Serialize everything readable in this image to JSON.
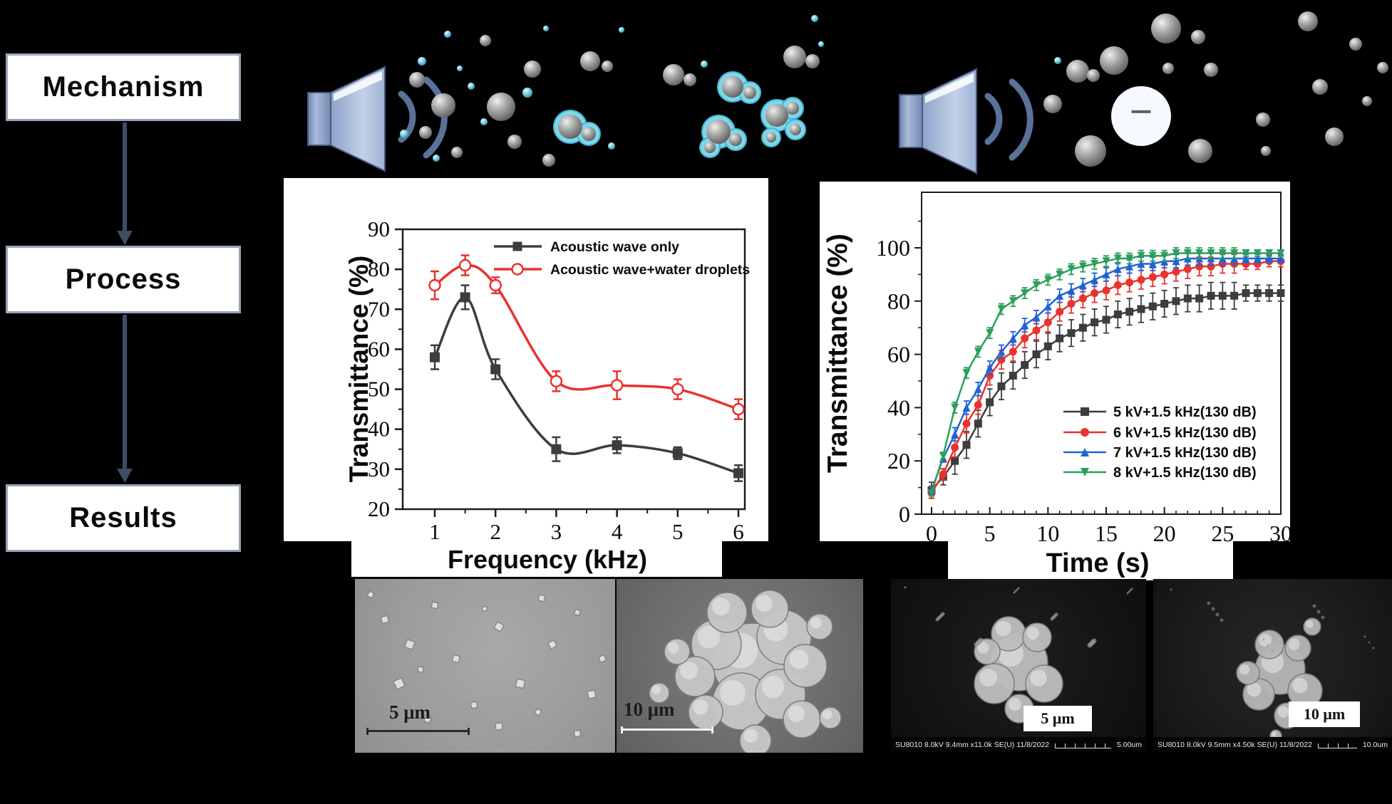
{
  "flowchart": {
    "items": [
      "Mechanism",
      "Process",
      "Results"
    ]
  },
  "mechanism": {
    "minus_symbol": "−",
    "accent_cyan": "#7fd7ea",
    "speaker_color": "#9db2d6"
  },
  "chart_data": [
    {
      "type": "line",
      "title": "",
      "xlabel": "Frequency (kHz)",
      "ylabel": "Transmittance (%)",
      "xlim": [
        0.47,
        6.1
      ],
      "ylim": [
        20,
        90
      ],
      "xticks": [
        1,
        2,
        3,
        4,
        5,
        6
      ],
      "yticks": [
        20,
        30,
        40,
        50,
        60,
        70,
        80,
        90
      ],
      "grid": false,
      "legend_position": "top-inside",
      "x": [
        1,
        1.5,
        2,
        3,
        4,
        5,
        6
      ],
      "series": [
        {
          "name": "Acoustic wave only",
          "color": "#3d3d3d",
          "marker": "square",
          "values": [
            58,
            73,
            55,
            35,
            36,
            34,
            29
          ],
          "errors": [
            3,
            3,
            2.5,
            3,
            2,
            1.5,
            2
          ]
        },
        {
          "name": "Acoustic wave+water droplets",
          "color": "#e8332e",
          "marker": "open-circle",
          "values": [
            76,
            81,
            76,
            52,
            51,
            50,
            45
          ],
          "errors": [
            3.5,
            2.5,
            2,
            2.5,
            3.5,
            2.5,
            2.5
          ]
        }
      ]
    },
    {
      "type": "line",
      "title": "",
      "xlabel": "Time (s)",
      "ylabel": "Transmittance (%)",
      "xlim": [
        -0.9,
        30
      ],
      "ylim": [
        0,
        120
      ],
      "xticks": [
        0,
        5,
        10,
        15,
        20,
        25,
        30
      ],
      "yticks": [
        0,
        20,
        40,
        60,
        80,
        100
      ],
      "grid": false,
      "legend_position": "right-inside",
      "x": [
        0,
        1,
        2,
        3,
        4,
        5,
        6,
        7,
        8,
        9,
        10,
        11,
        12,
        13,
        14,
        15,
        16,
        17,
        18,
        19,
        20,
        21,
        22,
        23,
        24,
        25,
        26,
        27,
        28,
        29,
        30
      ],
      "series": [
        {
          "name": "5 kV+1.5 kHz(130 dB)",
          "color": "#3d3d3d",
          "marker": "square",
          "error": 5,
          "values": [
            9,
            14,
            20,
            26,
            34,
            42,
            48,
            52,
            56,
            60,
            63,
            66,
            68,
            70,
            72,
            73,
            75,
            76,
            77,
            78,
            79,
            80,
            81,
            81,
            82,
            82,
            82,
            83,
            83,
            83,
            83
          ]
        },
        {
          "name": "6 kV+1.5 kHz(130 dB)",
          "color": "#e8332e",
          "marker": "circle",
          "error": 3.5,
          "values": [
            8,
            15,
            25,
            34,
            41,
            52,
            58,
            61,
            66,
            69,
            72,
            76,
            79,
            81,
            83,
            84,
            86,
            87,
            88,
            89,
            90,
            91,
            92,
            93,
            93,
            94,
            94,
            94,
            94,
            95,
            95
          ]
        },
        {
          "name": "7 kV+1.5 kHz(130 dB)",
          "color": "#1f63d6",
          "marker": "tri-up",
          "error": 2.5,
          "values": [
            9,
            21,
            30,
            40,
            47,
            55,
            61,
            66,
            71,
            74,
            78,
            82,
            84,
            86,
            88,
            90,
            92,
            93,
            94,
            94,
            95,
            95,
            96,
            96,
            96,
            96,
            96,
            96,
            96,
            96,
            96
          ]
        },
        {
          "name": "8 kV+1.5 kHz(130 dB)",
          "color": "#2aa05a",
          "marker": "tri-down",
          "error": 2,
          "values": [
            8,
            22,
            40,
            53,
            61,
            68,
            77,
            80,
            83,
            86,
            88,
            90,
            92,
            93,
            94,
            95,
            96,
            96,
            97,
            97,
            97,
            98,
            98,
            98,
            98,
            98,
            98,
            98,
            98,
            98,
            98
          ]
        }
      ]
    }
  ],
  "sem": [
    {
      "scale_label": "5 μm"
    },
    {
      "scale_label": "10 μm"
    },
    {
      "scale_label": "5 μm",
      "caption_left": "SU8010 8.0kV 9.4mm x11.0k SE(U) 11/8/2022",
      "caption_right": "5.00um"
    },
    {
      "scale_label": "10 μm",
      "caption_left": "SU8010 8.0kV 9.5mm x4.50k SE(U) 11/8/2022",
      "caption_right": "10.0um"
    }
  ]
}
